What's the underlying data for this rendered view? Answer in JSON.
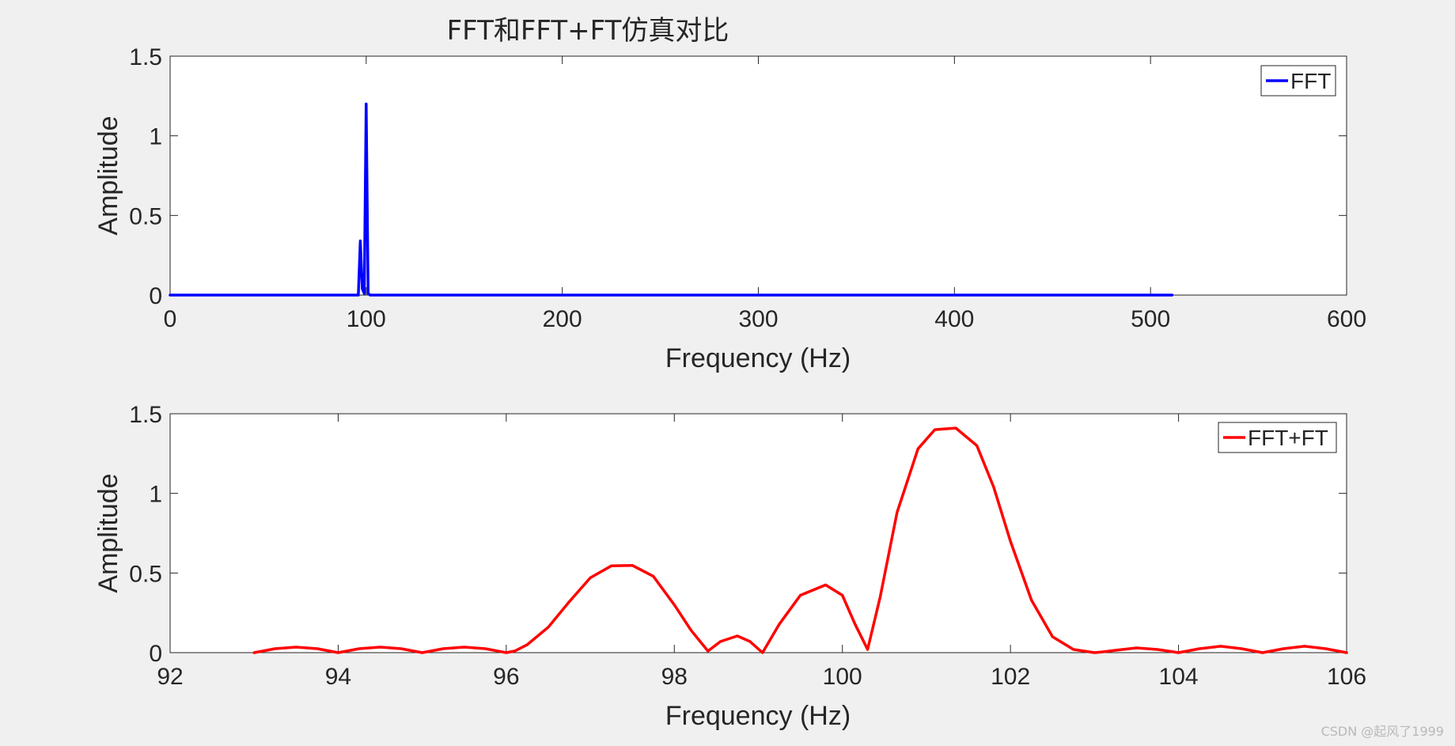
{
  "watermark": "CSDN @起风了1999",
  "colors": {
    "fft": "#0000ff",
    "fft_ft": "#ff0000",
    "background": "#f0f0f0",
    "axes": "#262626"
  },
  "chart_data": [
    {
      "type": "line",
      "title": "FFT和FFT+FT仿真对比",
      "xlabel": "Frequency (Hz)",
      "ylabel": "Amplitude",
      "xlim": [
        0,
        600
      ],
      "ylim": [
        0,
        1.5
      ],
      "xticks": [
        "0",
        "100",
        "200",
        "300",
        "400",
        "500",
        "600"
      ],
      "yticks": [
        "0",
        "0.5",
        "1",
        "1.5"
      ],
      "grid": false,
      "legend_position": "top-right",
      "series": [
        {
          "name": "FFT",
          "color": "#0000ff",
          "x": [
            0,
            96,
            97,
            98,
            99,
            100,
            101,
            102,
            103,
            511
          ],
          "y": [
            0,
            0,
            0.34,
            0.04,
            0.01,
            1.2,
            0.01,
            0,
            0,
            0
          ]
        }
      ]
    },
    {
      "type": "line",
      "title": "",
      "xlabel": "Frequency (Hz)",
      "ylabel": "Amplitude",
      "xlim": [
        92,
        106
      ],
      "ylim": [
        0,
        1.5
      ],
      "xticks": [
        "92",
        "94",
        "96",
        "98",
        "100",
        "102",
        "104",
        "106"
      ],
      "yticks": [
        "0",
        "0.5",
        "1",
        "1.5"
      ],
      "grid": false,
      "legend_position": "top-right",
      "series": [
        {
          "name": "FFT+FT",
          "color": "#ff0000",
          "x": [
            93.0,
            93.25,
            93.5,
            93.75,
            94.0,
            94.25,
            94.5,
            94.75,
            95.0,
            95.25,
            95.5,
            95.75,
            96.0,
            96.1,
            96.25,
            96.5,
            96.75,
            97.0,
            97.25,
            97.5,
            97.75,
            98.0,
            98.2,
            98.4,
            98.55,
            98.75,
            98.9,
            99.05,
            99.25,
            99.5,
            99.8,
            100.0,
            100.15,
            100.3,
            100.45,
            100.65,
            100.9,
            101.1,
            101.35,
            101.6,
            101.8,
            102.0,
            102.25,
            102.5,
            102.75,
            103.0,
            103.1,
            103.25,
            103.5,
            103.75,
            104.0,
            104.25,
            104.5,
            104.75,
            105.0,
            105.25,
            105.5,
            105.75,
            106.0
          ],
          "y": [
            0.0,
            0.025,
            0.035,
            0.025,
            0.0,
            0.025,
            0.035,
            0.025,
            0.0,
            0.025,
            0.035,
            0.025,
            0.0,
            0.01,
            0.05,
            0.16,
            0.32,
            0.47,
            0.545,
            0.548,
            0.48,
            0.3,
            0.14,
            0.01,
            0.07,
            0.105,
            0.07,
            0.0,
            0.18,
            0.36,
            0.425,
            0.36,
            0.18,
            0.02,
            0.35,
            0.88,
            1.28,
            1.4,
            1.41,
            1.3,
            1.04,
            0.7,
            0.33,
            0.1,
            0.02,
            0.0,
            0.005,
            0.015,
            0.03,
            0.02,
            0.0,
            0.025,
            0.04,
            0.025,
            0.0,
            0.025,
            0.04,
            0.025,
            0.0
          ]
        }
      ]
    }
  ]
}
